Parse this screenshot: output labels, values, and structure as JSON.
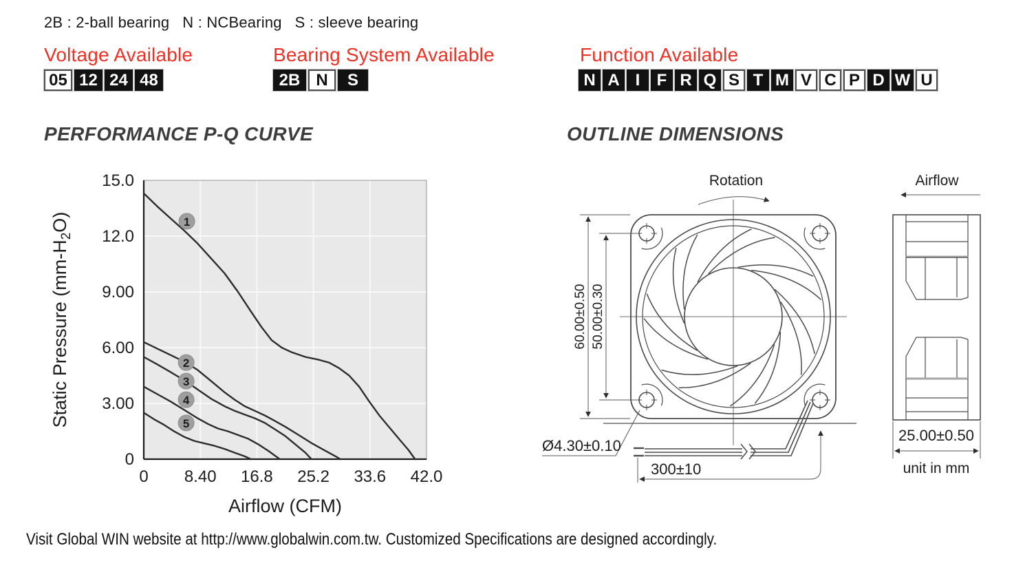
{
  "header": {
    "legend_line": "2B : 2-ball bearing   N : NCBearing   S : sleeve bearing"
  },
  "sections": {
    "voltage": {
      "title": "Voltage Available",
      "boxes": [
        {
          "label": "05",
          "filled": false
        },
        {
          "label": "12",
          "filled": true
        },
        {
          "label": "24",
          "filled": true
        },
        {
          "label": "48",
          "filled": true
        }
      ]
    },
    "bearing": {
      "title": "Bearing System Available",
      "boxes": [
        {
          "label": "2B",
          "filled": true
        },
        {
          "label": "N",
          "filled": false
        },
        {
          "label": "S",
          "filled": true
        }
      ]
    },
    "function": {
      "title": "Function Available",
      "boxes": [
        {
          "label": "N",
          "filled": true
        },
        {
          "label": "A",
          "filled": true
        },
        {
          "label": "I",
          "filled": true
        },
        {
          "label": "F",
          "filled": true
        },
        {
          "label": "R",
          "filled": true
        },
        {
          "label": "Q",
          "filled": true
        },
        {
          "label": "S",
          "filled": false
        },
        {
          "label": "T",
          "filled": true
        },
        {
          "label": "M",
          "filled": true
        },
        {
          "label": "V",
          "filled": false
        },
        {
          "label": "C",
          "filled": false
        },
        {
          "label": "P",
          "filled": false
        },
        {
          "label": "D",
          "filled": true
        },
        {
          "label": "W",
          "filled": true
        },
        {
          "label": "U",
          "filled": false
        }
      ]
    }
  },
  "section_titles": {
    "pq": "PERFORMANCE P-Q CURVE",
    "outline": "OUTLINE DIMENSIONS"
  },
  "chart_data": {
    "type": "line",
    "title": "PERFORMANCE P-Q CURVE",
    "xlabel": "Airflow (CFM)",
    "ylabel": "Static Pressure (mm-H2O)",
    "ylabel_rich": {
      "pre": "Static Pressure (mm-H",
      "sub": "2",
      "post": "O)"
    },
    "xlim": [
      0,
      42
    ],
    "ylim": [
      0,
      15
    ],
    "grid": true,
    "xticks": {
      "values": [
        0,
        8.4,
        16.8,
        25.2,
        33.6,
        42
      ],
      "labels": [
        "0",
        "8.40",
        "16.8",
        "25.2",
        "33.6",
        "42.0"
      ]
    },
    "yticks": {
      "values": [
        15,
        12,
        9,
        6,
        3,
        0
      ],
      "labels": [
        "15.0",
        "12.0",
        "9.00",
        "6.00",
        "3.00",
        "0"
      ]
    },
    "series": [
      {
        "name": "1",
        "points": [
          [
            0,
            14.3
          ],
          [
            2,
            13.6
          ],
          [
            4,
            12.95
          ],
          [
            6,
            12.3
          ],
          [
            8,
            11.6
          ],
          [
            10,
            10.8
          ],
          [
            12,
            10.0
          ],
          [
            14,
            9.0
          ],
          [
            16,
            7.9
          ],
          [
            17.5,
            7.1
          ],
          [
            19,
            6.4
          ],
          [
            20.5,
            6.0
          ],
          [
            22,
            5.75
          ],
          [
            24,
            5.5
          ],
          [
            26,
            5.35
          ],
          [
            27.5,
            5.2
          ],
          [
            29,
            4.9
          ],
          [
            30.5,
            4.5
          ],
          [
            32,
            3.9
          ],
          [
            33.5,
            3.1
          ],
          [
            35,
            2.35
          ],
          [
            36.5,
            1.7
          ],
          [
            38,
            1.05
          ],
          [
            39.3,
            0.5
          ],
          [
            40.3,
            0
          ]
        ]
      },
      {
        "name": "2",
        "points": [
          [
            0,
            6.3
          ],
          [
            2,
            5.95
          ],
          [
            4,
            5.6
          ],
          [
            6,
            5.25
          ],
          [
            8,
            4.8
          ],
          [
            10,
            4.2
          ],
          [
            12,
            3.6
          ],
          [
            13.5,
            3.2
          ],
          [
            15,
            2.85
          ],
          [
            16.5,
            2.6
          ],
          [
            18,
            2.35
          ],
          [
            19.5,
            2.05
          ],
          [
            21,
            1.75
          ],
          [
            23,
            1.3
          ],
          [
            25,
            0.85
          ],
          [
            27,
            0.45
          ],
          [
            28.5,
            0.15
          ],
          [
            29.2,
            0
          ]
        ]
      },
      {
        "name": "3",
        "points": [
          [
            0,
            5.5
          ],
          [
            2,
            5.1
          ],
          [
            4,
            4.68
          ],
          [
            6,
            4.25
          ],
          [
            8,
            3.75
          ],
          [
            10,
            3.25
          ],
          [
            12,
            2.85
          ],
          [
            13.5,
            2.6
          ],
          [
            15,
            2.4
          ],
          [
            16.5,
            2.2
          ],
          [
            18,
            1.95
          ],
          [
            19.5,
            1.6
          ],
          [
            21,
            1.25
          ],
          [
            22.5,
            0.8
          ],
          [
            24,
            0.35
          ],
          [
            24.9,
            0
          ]
        ]
      },
      {
        "name": "4",
        "points": [
          [
            0,
            3.9
          ],
          [
            2,
            3.5
          ],
          [
            4,
            3.1
          ],
          [
            6,
            2.65
          ],
          [
            8,
            2.2
          ],
          [
            9.5,
            1.9
          ],
          [
            11,
            1.65
          ],
          [
            12.5,
            1.5
          ],
          [
            14,
            1.3
          ],
          [
            15.5,
            1.1
          ],
          [
            17,
            0.8
          ],
          [
            18.5,
            0.45
          ],
          [
            20.2,
            0
          ]
        ]
      },
      {
        "name": "5",
        "points": [
          [
            0,
            2.5
          ],
          [
            1.5,
            2.15
          ],
          [
            3,
            1.85
          ],
          [
            4.5,
            1.5
          ],
          [
            6,
            1.2
          ],
          [
            7.5,
            0.98
          ],
          [
            9,
            0.85
          ],
          [
            10.5,
            0.72
          ],
          [
            12,
            0.55
          ],
          [
            13.5,
            0.35
          ],
          [
            15,
            0.15
          ],
          [
            15.9,
            0
          ]
        ]
      }
    ],
    "curve_markers": [
      {
        "label": "1",
        "x": 6.4,
        "y": 12.8
      },
      {
        "label": "2",
        "x": 6.3,
        "y": 5.2
      },
      {
        "label": "3",
        "x": 6.3,
        "y": 4.2
      },
      {
        "label": "4",
        "x": 6.3,
        "y": 3.2
      },
      {
        "label": "5",
        "x": 6.3,
        "y": 1.95
      }
    ]
  },
  "outline": {
    "rotation_label": "Rotation",
    "airflow_label": "Airflow",
    "dim_frame_height": "60.00±0.50",
    "dim_hole_pitch": "50.00±0.30",
    "dim_hole_diameter": "Ø4.30±0.10",
    "dim_lead_length": "300±10",
    "dim_depth": "25.00±0.50",
    "unit_note": "unit in mm"
  },
  "footer": {
    "text": "Visit Global WIN website at http://www.globalwin.com.tw. Customized Specifications are designed accordingly."
  },
  "colors": {
    "accent_red": "#ee3124",
    "ink": "#1a1a1a",
    "line_art": "#4a4a4a",
    "curve": "#2b2b2b",
    "plot_bg": "#e9e9e9",
    "grid_line": "#f8f8f8",
    "marker_fill": "#9e9e9e",
    "box_black": "#121212"
  }
}
